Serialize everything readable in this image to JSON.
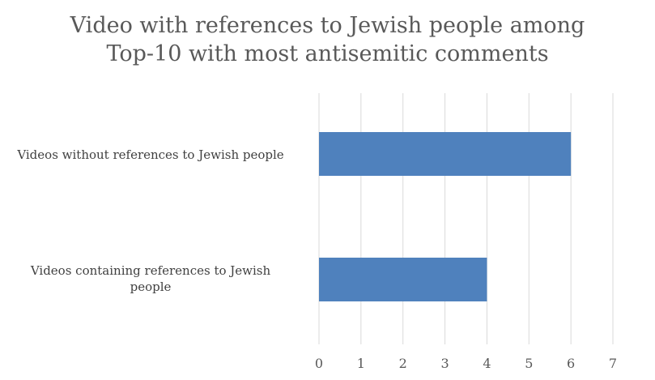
{
  "chart_data": {
    "type": "bar",
    "orientation": "horizontal",
    "title_lines": [
      "Video with references to Jewish people among",
      "Top-10 with most antisemitic comments"
    ],
    "categories": [
      [
        "Videos without references to Jewish people"
      ],
      [
        "Videos containing references to Jewish",
        "people"
      ]
    ],
    "series": [
      {
        "values": [
          6,
          4
        ]
      }
    ],
    "xlim": [
      0,
      7
    ],
    "x_ticks": [
      "0",
      "1",
      "2",
      "3",
      "4",
      "5",
      "6",
      "7"
    ],
    "grid": true,
    "legend": "none",
    "bar_color": "#4f81bd",
    "grid_color": "#d9d9d9",
    "text_color": "#595959"
  }
}
